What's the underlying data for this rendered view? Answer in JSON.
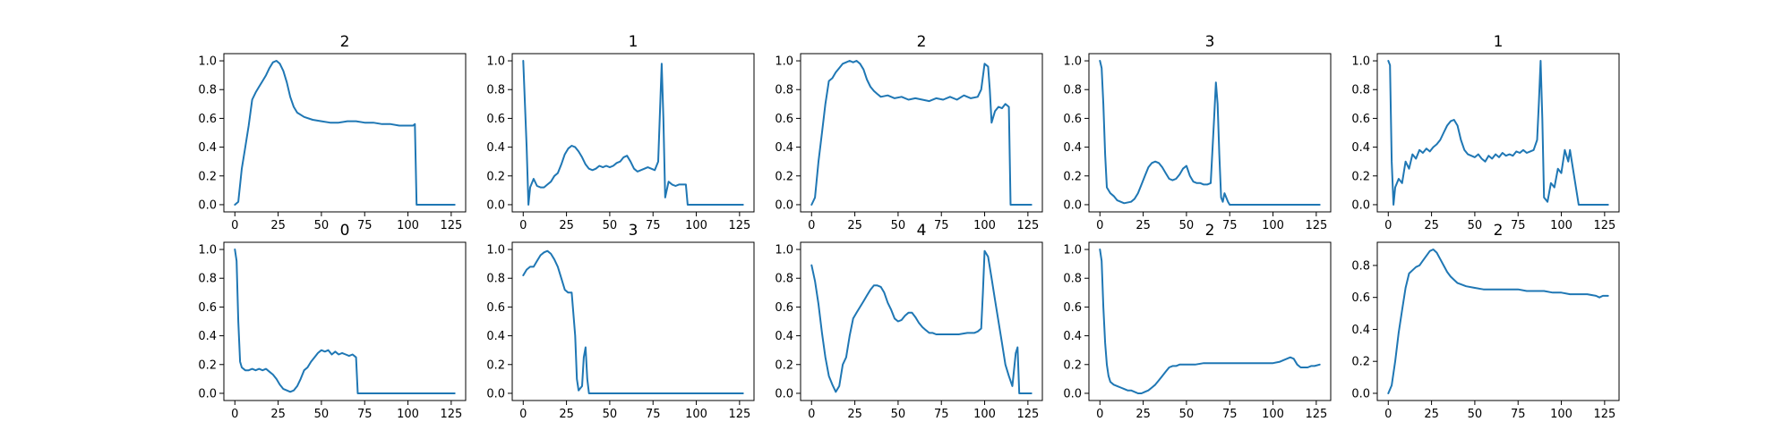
{
  "chart_data": [
    {
      "type": "line",
      "title": "2",
      "xlabel": "",
      "ylabel": "",
      "xlim": [
        -6.35,
        133.35
      ],
      "ylim": [
        -0.05,
        1.05
      ],
      "xticks": [
        0,
        25,
        50,
        75,
        100,
        125
      ],
      "yticks": [
        0.0,
        0.2,
        0.4,
        0.6,
        0.8,
        1.0
      ],
      "line_color": "#1f77b4",
      "x": [
        0,
        2,
        4,
        6,
        8,
        10,
        12,
        14,
        16,
        18,
        20,
        22,
        24,
        26,
        28,
        30,
        32,
        34,
        36,
        40,
        45,
        50,
        55,
        60,
        65,
        70,
        75,
        80,
        85,
        90,
        95,
        100,
        103,
        104,
        105,
        110,
        115,
        120,
        127
      ],
      "values": [
        0.0,
        0.02,
        0.25,
        0.4,
        0.55,
        0.73,
        0.78,
        0.82,
        0.86,
        0.9,
        0.95,
        0.99,
        1.0,
        0.98,
        0.93,
        0.85,
        0.75,
        0.68,
        0.64,
        0.61,
        0.59,
        0.58,
        0.57,
        0.57,
        0.58,
        0.58,
        0.57,
        0.57,
        0.56,
        0.56,
        0.55,
        0.55,
        0.55,
        0.56,
        0.0,
        0.0,
        0.0,
        0.0,
        0.0
      ]
    },
    {
      "type": "line",
      "title": "1",
      "xlabel": "",
      "ylabel": "",
      "xlim": [
        -6.35,
        133.35
      ],
      "ylim": [
        -0.05,
        1.05
      ],
      "xticks": [
        0,
        25,
        50,
        75,
        100,
        125
      ],
      "yticks": [
        0.0,
        0.2,
        0.4,
        0.6,
        0.8,
        1.0
      ],
      "line_color": "#1f77b4",
      "x": [
        0,
        2,
        3,
        4,
        6,
        8,
        10,
        12,
        14,
        16,
        18,
        20,
        22,
        24,
        26,
        28,
        30,
        32,
        34,
        36,
        38,
        40,
        42,
        44,
        46,
        48,
        50,
        52,
        54,
        56,
        58,
        60,
        62,
        64,
        66,
        68,
        70,
        72,
        74,
        76,
        78,
        80,
        81,
        82,
        84,
        86,
        88,
        90,
        92,
        94,
        95,
        96,
        100,
        110,
        120,
        127
      ],
      "values": [
        1.0,
        0.4,
        0.0,
        0.12,
        0.18,
        0.13,
        0.12,
        0.12,
        0.14,
        0.16,
        0.2,
        0.22,
        0.28,
        0.35,
        0.39,
        0.41,
        0.4,
        0.37,
        0.33,
        0.28,
        0.25,
        0.24,
        0.25,
        0.27,
        0.26,
        0.27,
        0.26,
        0.27,
        0.29,
        0.3,
        0.33,
        0.34,
        0.3,
        0.25,
        0.23,
        0.24,
        0.25,
        0.26,
        0.25,
        0.24,
        0.3,
        0.98,
        0.6,
        0.05,
        0.16,
        0.14,
        0.13,
        0.14,
        0.14,
        0.14,
        0.0,
        0.0,
        0.0,
        0.0,
        0.0,
        0.0
      ]
    },
    {
      "type": "line",
      "title": "2",
      "xlabel": "",
      "ylabel": "",
      "xlim": [
        -6.35,
        133.35
      ],
      "ylim": [
        -0.05,
        1.05
      ],
      "xticks": [
        0,
        25,
        50,
        75,
        100,
        125
      ],
      "yticks": [
        0.0,
        0.2,
        0.4,
        0.6,
        0.8,
        1.0
      ],
      "line_color": "#1f77b4",
      "x": [
        0,
        2,
        4,
        6,
        8,
        10,
        12,
        14,
        16,
        18,
        20,
        22,
        24,
        26,
        28,
        30,
        32,
        34,
        36,
        38,
        40,
        44,
        48,
        52,
        56,
        60,
        64,
        68,
        72,
        76,
        80,
        84,
        88,
        92,
        96,
        98,
        100,
        102,
        103,
        104,
        106,
        108,
        110,
        112,
        114,
        115,
        116,
        120,
        127
      ],
      "values": [
        0.0,
        0.05,
        0.3,
        0.5,
        0.7,
        0.86,
        0.88,
        0.92,
        0.95,
        0.98,
        0.99,
        1.0,
        0.99,
        1.0,
        0.98,
        0.94,
        0.87,
        0.82,
        0.79,
        0.77,
        0.75,
        0.76,
        0.74,
        0.75,
        0.73,
        0.74,
        0.73,
        0.72,
        0.74,
        0.73,
        0.75,
        0.73,
        0.76,
        0.74,
        0.75,
        0.8,
        0.98,
        0.96,
        0.8,
        0.57,
        0.65,
        0.68,
        0.67,
        0.7,
        0.68,
        0.0,
        0.0,
        0.0,
        0.0
      ]
    },
    {
      "type": "line",
      "title": "3",
      "xlabel": "",
      "ylabel": "",
      "xlim": [
        -6.35,
        133.35
      ],
      "ylim": [
        -0.05,
        1.05
      ],
      "xticks": [
        0,
        25,
        50,
        75,
        100,
        125
      ],
      "yticks": [
        0.0,
        0.2,
        0.4,
        0.6,
        0.8,
        1.0
      ],
      "line_color": "#1f77b4",
      "x": [
        0,
        1,
        2,
        3,
        4,
        6,
        8,
        10,
        14,
        18,
        20,
        22,
        24,
        26,
        28,
        30,
        32,
        34,
        36,
        38,
        40,
        42,
        44,
        46,
        48,
        50,
        52,
        54,
        56,
        58,
        60,
        62,
        64,
        66,
        67,
        68,
        69,
        70,
        71,
        72,
        74,
        75,
        80,
        90,
        100,
        110,
        120,
        127
      ],
      "values": [
        1.0,
        0.95,
        0.7,
        0.35,
        0.12,
        0.08,
        0.06,
        0.03,
        0.01,
        0.02,
        0.04,
        0.08,
        0.14,
        0.2,
        0.26,
        0.29,
        0.3,
        0.29,
        0.26,
        0.22,
        0.18,
        0.17,
        0.18,
        0.21,
        0.25,
        0.27,
        0.2,
        0.16,
        0.15,
        0.15,
        0.14,
        0.14,
        0.15,
        0.6,
        0.85,
        0.7,
        0.35,
        0.05,
        0.02,
        0.08,
        0.02,
        0.0,
        0.0,
        0.0,
        0.0,
        0.0,
        0.0,
        0.0
      ]
    },
    {
      "type": "line",
      "title": "1",
      "xlabel": "",
      "ylabel": "",
      "xlim": [
        -6.35,
        133.35
      ],
      "ylim": [
        -0.05,
        1.05
      ],
      "xticks": [
        0,
        25,
        50,
        75,
        100,
        125
      ],
      "yticks": [
        0.0,
        0.2,
        0.4,
        0.6,
        0.8,
        1.0
      ],
      "line_color": "#1f77b4",
      "x": [
        0,
        1,
        2,
        3,
        4,
        6,
        8,
        10,
        12,
        14,
        16,
        18,
        20,
        22,
        24,
        26,
        28,
        30,
        32,
        34,
        36,
        38,
        40,
        42,
        44,
        46,
        48,
        50,
        52,
        54,
        56,
        58,
        60,
        62,
        64,
        66,
        68,
        70,
        72,
        74,
        76,
        78,
        80,
        82,
        84,
        86,
        87,
        88,
        89,
        90,
        92,
        94,
        96,
        98,
        100,
        102,
        104,
        105,
        110,
        120,
        127
      ],
      "values": [
        1.0,
        0.97,
        0.3,
        0.0,
        0.12,
        0.18,
        0.15,
        0.3,
        0.25,
        0.35,
        0.32,
        0.38,
        0.36,
        0.39,
        0.37,
        0.4,
        0.42,
        0.45,
        0.5,
        0.55,
        0.58,
        0.59,
        0.55,
        0.45,
        0.38,
        0.35,
        0.34,
        0.33,
        0.35,
        0.32,
        0.3,
        0.34,
        0.32,
        0.35,
        0.33,
        0.36,
        0.34,
        0.35,
        0.34,
        0.37,
        0.36,
        0.38,
        0.36,
        0.37,
        0.38,
        0.45,
        0.7,
        1.0,
        0.6,
        0.05,
        0.02,
        0.15,
        0.12,
        0.25,
        0.22,
        0.38,
        0.3,
        0.38,
        0.0,
        0.0,
        0.0
      ]
    },
    {
      "type": "line",
      "title": "0",
      "xlabel": "",
      "ylabel": "",
      "xlim": [
        -6.35,
        133.35
      ],
      "ylim": [
        -0.05,
        1.05
      ],
      "xticks": [
        0,
        25,
        50,
        75,
        100,
        125
      ],
      "yticks": [
        0.0,
        0.2,
        0.4,
        0.6,
        0.8,
        1.0
      ],
      "line_color": "#1f77b4",
      "x": [
        0,
        1,
        2,
        3,
        4,
        6,
        8,
        10,
        12,
        14,
        16,
        18,
        20,
        22,
        24,
        26,
        28,
        30,
        32,
        34,
        36,
        38,
        40,
        42,
        44,
        46,
        48,
        50,
        52,
        54,
        56,
        58,
        60,
        62,
        64,
        66,
        68,
        70,
        71,
        75,
        80,
        90,
        100,
        110,
        120,
        127
      ],
      "values": [
        1.0,
        0.92,
        0.5,
        0.22,
        0.18,
        0.16,
        0.16,
        0.17,
        0.16,
        0.17,
        0.16,
        0.17,
        0.15,
        0.13,
        0.1,
        0.06,
        0.03,
        0.02,
        0.01,
        0.02,
        0.05,
        0.1,
        0.16,
        0.18,
        0.22,
        0.25,
        0.28,
        0.3,
        0.29,
        0.3,
        0.27,
        0.29,
        0.27,
        0.28,
        0.27,
        0.26,
        0.27,
        0.25,
        0.0,
        0.0,
        0.0,
        0.0,
        0.0,
        0.0,
        0.0,
        0.0
      ]
    },
    {
      "type": "line",
      "title": "3",
      "xlabel": "",
      "ylabel": "",
      "xlim": [
        -6.35,
        133.35
      ],
      "ylim": [
        -0.05,
        1.05
      ],
      "xticks": [
        0,
        25,
        50,
        75,
        100,
        125
      ],
      "yticks": [
        0.0,
        0.2,
        0.4,
        0.6,
        0.8,
        1.0
      ],
      "line_color": "#1f77b4",
      "x": [
        0,
        2,
        4,
        6,
        8,
        10,
        12,
        14,
        16,
        18,
        20,
        22,
        24,
        26,
        28,
        30,
        31,
        32,
        34,
        35,
        36,
        37,
        38,
        40,
        50,
        60,
        70,
        80,
        90,
        100,
        110,
        120,
        127
      ],
      "values": [
        0.82,
        0.86,
        0.88,
        0.88,
        0.92,
        0.96,
        0.98,
        0.99,
        0.97,
        0.93,
        0.88,
        0.8,
        0.72,
        0.7,
        0.7,
        0.4,
        0.1,
        0.02,
        0.05,
        0.25,
        0.32,
        0.1,
        0.0,
        0.0,
        0.0,
        0.0,
        0.0,
        0.0,
        0.0,
        0.0,
        0.0,
        0.0,
        0.0
      ]
    },
    {
      "type": "line",
      "title": "4",
      "xlabel": "",
      "ylabel": "",
      "xlim": [
        -6.35,
        133.35
      ],
      "ylim": [
        -0.05,
        1.05
      ],
      "xticks": [
        0,
        25,
        50,
        75,
        100,
        125
      ],
      "yticks": [
        0.0,
        0.2,
        0.4,
        0.6,
        0.8,
        1.0
      ],
      "line_color": "#1f77b4",
      "x": [
        0,
        2,
        4,
        6,
        8,
        10,
        12,
        14,
        16,
        18,
        20,
        22,
        24,
        26,
        28,
        30,
        32,
        34,
        36,
        38,
        40,
        42,
        44,
        46,
        48,
        50,
        52,
        54,
        56,
        58,
        60,
        62,
        64,
        66,
        68,
        70,
        72,
        75,
        80,
        85,
        90,
        94,
        96,
        98,
        99,
        100,
        102,
        104,
        106,
        108,
        110,
        112,
        114,
        116,
        118,
        119,
        120,
        124,
        127
      ],
      "values": [
        0.89,
        0.78,
        0.62,
        0.42,
        0.25,
        0.12,
        0.06,
        0.01,
        0.05,
        0.2,
        0.25,
        0.4,
        0.52,
        0.56,
        0.6,
        0.64,
        0.68,
        0.72,
        0.75,
        0.75,
        0.74,
        0.7,
        0.63,
        0.58,
        0.52,
        0.5,
        0.51,
        0.54,
        0.56,
        0.56,
        0.53,
        0.49,
        0.46,
        0.44,
        0.42,
        0.42,
        0.41,
        0.41,
        0.41,
        0.41,
        0.42,
        0.42,
        0.43,
        0.45,
        0.7,
        0.99,
        0.95,
        0.8,
        0.65,
        0.5,
        0.35,
        0.2,
        0.12,
        0.05,
        0.28,
        0.32,
        0.0,
        0.0,
        0.0
      ]
    },
    {
      "type": "line",
      "title": "2",
      "xlabel": "",
      "ylabel": "",
      "xlim": [
        -6.35,
        133.35
      ],
      "ylim": [
        -0.05,
        1.05
      ],
      "xticks": [
        0,
        25,
        50,
        75,
        100,
        125
      ],
      "yticks": [
        0.0,
        0.2,
        0.4,
        0.6,
        0.8,
        1.0
      ],
      "line_color": "#1f77b4",
      "x": [
        0,
        1,
        2,
        3,
        4,
        5,
        6,
        8,
        10,
        12,
        14,
        16,
        18,
        20,
        22,
        24,
        26,
        28,
        30,
        32,
        34,
        36,
        38,
        40,
        42,
        44,
        46,
        48,
        50,
        55,
        60,
        65,
        70,
        75,
        80,
        85,
        90,
        95,
        100,
        104,
        106,
        108,
        110,
        112,
        114,
        116,
        118,
        120,
        122,
        124,
        127
      ],
      "values": [
        1.0,
        0.92,
        0.6,
        0.35,
        0.2,
        0.12,
        0.08,
        0.06,
        0.05,
        0.04,
        0.03,
        0.02,
        0.02,
        0.01,
        0.0,
        0.0,
        0.01,
        0.02,
        0.04,
        0.06,
        0.09,
        0.12,
        0.15,
        0.18,
        0.19,
        0.19,
        0.2,
        0.2,
        0.2,
        0.2,
        0.21,
        0.21,
        0.21,
        0.21,
        0.21,
        0.21,
        0.21,
        0.21,
        0.21,
        0.22,
        0.23,
        0.24,
        0.25,
        0.24,
        0.2,
        0.18,
        0.18,
        0.18,
        0.19,
        0.19,
        0.2
      ]
    },
    {
      "type": "line",
      "title": "2",
      "xlabel": "",
      "ylabel": "",
      "xlim": [
        -6.35,
        133.35
      ],
      "ylim": [
        -0.045,
        0.945
      ],
      "xticks": [
        0,
        25,
        50,
        75,
        100,
        125
      ],
      "yticks": [
        0.0,
        0.2,
        0.4,
        0.6,
        0.8
      ],
      "line_color": "#1f77b4",
      "x": [
        0,
        2,
        4,
        6,
        8,
        10,
        12,
        14,
        16,
        18,
        20,
        22,
        24,
        26,
        28,
        30,
        32,
        34,
        36,
        38,
        40,
        45,
        50,
        55,
        60,
        65,
        70,
        75,
        80,
        85,
        90,
        95,
        100,
        105,
        110,
        115,
        120,
        122,
        124,
        127
      ],
      "values": [
        0.0,
        0.05,
        0.2,
        0.38,
        0.52,
        0.66,
        0.75,
        0.77,
        0.79,
        0.8,
        0.83,
        0.86,
        0.89,
        0.9,
        0.88,
        0.84,
        0.8,
        0.76,
        0.73,
        0.71,
        0.69,
        0.67,
        0.66,
        0.65,
        0.65,
        0.65,
        0.65,
        0.65,
        0.64,
        0.64,
        0.64,
        0.63,
        0.63,
        0.62,
        0.62,
        0.62,
        0.61,
        0.6,
        0.61,
        0.61
      ]
    }
  ]
}
